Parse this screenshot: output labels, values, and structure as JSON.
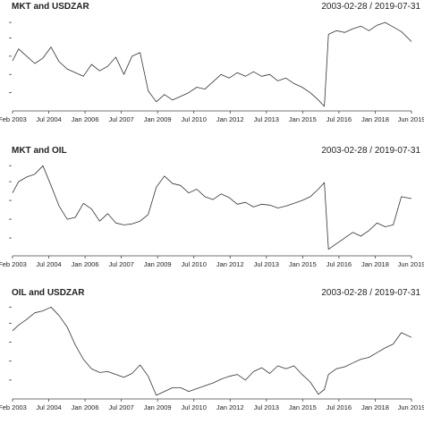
{
  "colors": {
    "line": "#333333",
    "axis": "#444444",
    "text": "#222222",
    "background": "#ffffff"
  },
  "chart_data": [
    {
      "type": "line",
      "title": "MKT and USDZAR",
      "date_range": "2003-02-28 / 2019-07-31",
      "x_tick_labels": [
        "Feb 2003",
        "Jul 2004",
        "Jan 2006",
        "Jul 2007",
        "Jan 2009",
        "Jul 2010",
        "Jan 2012",
        "Jul 2013",
        "Jan 2015",
        "Jul 2016",
        "Jan 2018",
        "Jun 2019"
      ],
      "y_tick_labels": [
        "",
        "",
        "",
        "",
        ""
      ],
      "ylim": [
        0,
        1
      ],
      "grid": false,
      "x": [
        "2003-02",
        "2003-05",
        "2003-09",
        "2004-01",
        "2004-05",
        "2004-09",
        "2005-01",
        "2005-05",
        "2005-09",
        "2006-01",
        "2006-05",
        "2006-09",
        "2007-01",
        "2007-05",
        "2007-09",
        "2008-01",
        "2008-05",
        "2008-09",
        "2009-01",
        "2009-05",
        "2009-09",
        "2010-01",
        "2010-05",
        "2010-09",
        "2011-01",
        "2011-05",
        "2011-09",
        "2012-01",
        "2012-05",
        "2012-09",
        "2013-01",
        "2013-05",
        "2013-09",
        "2014-01",
        "2014-05",
        "2014-09",
        "2015-01",
        "2015-05",
        "2015-09",
        "2015-12",
        "2016-02",
        "2016-06",
        "2016-10",
        "2017-02",
        "2017-06",
        "2017-10",
        "2018-02",
        "2018-06",
        "2018-10",
        "2019-02",
        "2019-07"
      ],
      "series": [
        {
          "values": [
            0.53,
            0.66,
            0.58,
            0.5,
            0.56,
            0.68,
            0.52,
            0.44,
            0.4,
            0.36,
            0.49,
            0.42,
            0.47,
            0.57,
            0.38,
            0.58,
            0.62,
            0.2,
            0.08,
            0.16,
            0.1,
            0.14,
            0.18,
            0.24,
            0.22,
            0.3,
            0.38,
            0.34,
            0.4,
            0.36,
            0.41,
            0.36,
            0.38,
            0.31,
            0.34,
            0.28,
            0.24,
            0.18,
            0.1,
            0.03,
            0.82,
            0.86,
            0.84,
            0.88,
            0.91,
            0.86,
            0.92,
            0.95,
            0.9,
            0.85,
            0.74
          ]
        }
      ]
    },
    {
      "type": "line",
      "title": "MKT and OIL",
      "date_range": "2003-02-28 / 2019-07-31",
      "x_tick_labels": [
        "Feb 2003",
        "Jul 2004",
        "Jan 2006",
        "Jul 2007",
        "Jan 2009",
        "Jul 2010",
        "Jan 2012",
        "Jul 2013",
        "Jan 2015",
        "Jul 2016",
        "Jan 2018",
        "Jun 2019"
      ],
      "y_tick_labels": [
        "",
        "",
        "",
        "",
        ""
      ],
      "ylim": [
        0,
        1
      ],
      "grid": false,
      "x": [
        "2003-02",
        "2003-05",
        "2003-09",
        "2004-01",
        "2004-05",
        "2004-09",
        "2005-01",
        "2005-05",
        "2005-09",
        "2006-01",
        "2006-05",
        "2006-09",
        "2007-01",
        "2007-05",
        "2007-09",
        "2008-01",
        "2008-05",
        "2008-09",
        "2009-01",
        "2009-05",
        "2009-09",
        "2010-01",
        "2010-05",
        "2010-09",
        "2011-01",
        "2011-05",
        "2011-09",
        "2012-01",
        "2012-05",
        "2012-09",
        "2013-01",
        "2013-05",
        "2013-09",
        "2014-01",
        "2014-05",
        "2014-09",
        "2015-01",
        "2015-05",
        "2015-09",
        "2015-12",
        "2016-02",
        "2016-06",
        "2016-10",
        "2017-02",
        "2017-06",
        "2017-10",
        "2018-02",
        "2018-06",
        "2018-10",
        "2019-02",
        "2019-07"
      ],
      "series": [
        {
          "values": [
            0.66,
            0.78,
            0.83,
            0.86,
            0.95,
            0.74,
            0.52,
            0.38,
            0.4,
            0.55,
            0.49,
            0.36,
            0.44,
            0.34,
            0.32,
            0.33,
            0.36,
            0.43,
            0.72,
            0.84,
            0.76,
            0.74,
            0.66,
            0.7,
            0.62,
            0.59,
            0.65,
            0.61,
            0.54,
            0.56,
            0.51,
            0.54,
            0.53,
            0.5,
            0.52,
            0.55,
            0.58,
            0.62,
            0.7,
            0.77,
            0.06,
            0.12,
            0.18,
            0.24,
            0.2,
            0.26,
            0.34,
            0.3,
            0.32,
            0.62,
            0.6
          ]
        }
      ]
    },
    {
      "type": "line",
      "title": "OIL and USDZAR",
      "date_range": "2003-02-28 / 2019-07-31",
      "x_tick_labels": [
        "Feb 2003",
        "Jul 2004",
        "Jan 2006",
        "Jul 2007",
        "Jan 2009",
        "Jul 2010",
        "Jan 2012",
        "Jul 2013",
        "Jan 2015",
        "Jul 2016",
        "Jan 2018",
        "Jun 2019"
      ],
      "y_tick_labels": [
        "",
        "",
        "",
        "",
        ""
      ],
      "ylim": [
        0,
        1
      ],
      "grid": false,
      "x": [
        "2003-02",
        "2003-05",
        "2003-09",
        "2004-01",
        "2004-05",
        "2004-09",
        "2005-01",
        "2005-05",
        "2005-09",
        "2006-01",
        "2006-05",
        "2006-09",
        "2007-01",
        "2007-05",
        "2007-09",
        "2008-01",
        "2008-05",
        "2008-09",
        "2009-01",
        "2009-05",
        "2009-09",
        "2010-01",
        "2010-05",
        "2010-09",
        "2011-01",
        "2011-05",
        "2011-09",
        "2012-01",
        "2012-05",
        "2012-09",
        "2013-01",
        "2013-05",
        "2013-09",
        "2014-01",
        "2014-05",
        "2014-09",
        "2015-01",
        "2015-05",
        "2015-09",
        "2015-12",
        "2016-02",
        "2016-06",
        "2016-10",
        "2017-02",
        "2017-06",
        "2017-10",
        "2018-02",
        "2018-06",
        "2018-10",
        "2019-02",
        "2019-07"
      ],
      "series": [
        {
          "values": [
            0.7,
            0.76,
            0.82,
            0.89,
            0.91,
            0.95,
            0.86,
            0.74,
            0.55,
            0.4,
            0.3,
            0.26,
            0.27,
            0.24,
            0.21,
            0.25,
            0.34,
            0.22,
            0.02,
            0.06,
            0.1,
            0.1,
            0.06,
            0.09,
            0.12,
            0.15,
            0.19,
            0.22,
            0.24,
            0.18,
            0.27,
            0.31,
            0.25,
            0.33,
            0.3,
            0.33,
            0.24,
            0.16,
            0.03,
            0.08,
            0.24,
            0.3,
            0.32,
            0.36,
            0.4,
            0.42,
            0.47,
            0.52,
            0.56,
            0.68,
            0.63
          ]
        }
      ]
    }
  ]
}
